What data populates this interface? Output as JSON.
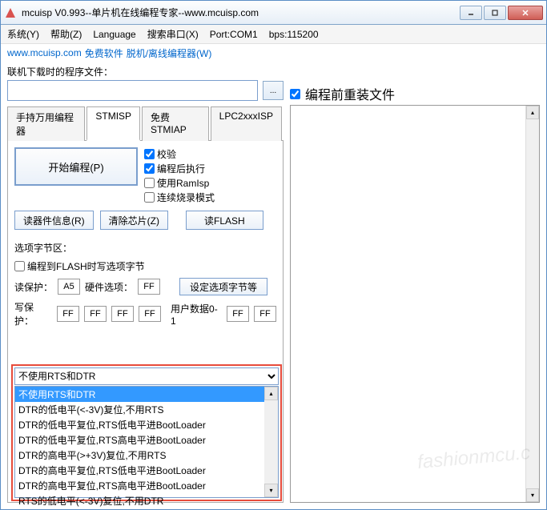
{
  "window": {
    "title": "mcuisp V0.993--单片机在线编程专家--www.mcuisp.com"
  },
  "menu": {
    "system": "系统(Y)",
    "help": "帮助(Z)",
    "language": "Language",
    "search_port": "搜索串口(X)",
    "port": "Port:COM1",
    "bps": "bps:115200"
  },
  "submenu": {
    "url": "www.mcuisp.com",
    "free": "免费软件",
    "offline": "脱机/离线编程器(W)"
  },
  "file_section": {
    "label": "联机下载时的程序文件：",
    "value": "",
    "browse": "...",
    "reload_chk": "编程前重装文件"
  },
  "tabs": {
    "t0": "手持万用编程器",
    "t1": "STMISP",
    "t2": "免费STMIAP",
    "t3": "LPC2xxxISP"
  },
  "prog": {
    "start_btn": "开始编程(P)",
    "verify": "校验",
    "run_after": "编程后执行",
    "ramisp": "使用RamIsp",
    "continuous": "连续烧录模式"
  },
  "buttons": {
    "dev_info": "读器件信息(R)",
    "clear_chip": "清除芯片(Z)",
    "read_flash": "读FLASH"
  },
  "option": {
    "section": "选项字节区：",
    "write_opt": "编程到FLASH时写选项字节",
    "read_protect": "读保护：",
    "read_protect_val": "A5",
    "hw_opt": "硬件选项：",
    "hw_opt_val": "FF",
    "set_opt_btn": "设定选项字节等",
    "write_protect": "写保护：",
    "wp0": "FF",
    "wp1": "FF",
    "wp2": "FF",
    "wp3": "FF",
    "user_data": "用户数据0-1",
    "ud0": "FF",
    "ud1": "FF"
  },
  "dropdown": {
    "selected": "不使用RTS和DTR",
    "items": [
      "不使用RTS和DTR",
      "DTR的低电平(<-3V)复位,不用RTS",
      "DTR的低电平复位,RTS低电平进BootLoader",
      "DTR的低电平复位,RTS高电平进BootLoader",
      "DTR的高电平(>+3V)复位,不用RTS",
      "DTR的高电平复位,RTS低电平进BootLoader",
      "DTR的高电平复位,RTS高电平进BootLoader",
      "RTS的低电平(<-3V)复位,不用DTR"
    ]
  },
  "checkbox_states": {
    "reload": true,
    "verify": true,
    "run_after": true,
    "ramisp": false,
    "continuous": false,
    "write_opt": false
  },
  "colors": {
    "border": "#7a9ecd",
    "highlight": "#3399ff",
    "red_box": "#e74c3c"
  },
  "watermark": "fashionmcu.c"
}
